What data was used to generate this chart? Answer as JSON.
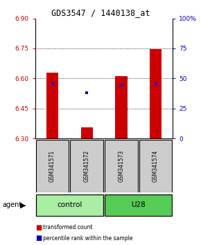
{
  "title": "GDS3547 / 1440138_at",
  "samples": [
    "GSM341571",
    "GSM341572",
    "GSM341573",
    "GSM341574"
  ],
  "groups": [
    "control",
    "control",
    "U28",
    "U28"
  ],
  "ylim": [
    6.3,
    6.9
  ],
  "y_ticks_left": [
    6.3,
    6.45,
    6.6,
    6.75,
    6.9
  ],
  "y_ticks_right": [
    0,
    25,
    50,
    75,
    100
  ],
  "bar_bottom": 6.3,
  "bar_tops": [
    6.63,
    6.355,
    6.61,
    6.745
  ],
  "blue_y": [
    6.572,
    6.527,
    6.565,
    6.572
  ],
  "bar_color": "#CC0000",
  "blue_color": "#0000CC",
  "bar_width": 0.35,
  "right_axis_color": "#0000CC",
  "left_axis_color": "#CC0000",
  "control_color": "#AAEEA4",
  "u28_color": "#55CC55",
  "legend_red": "transformed count",
  "legend_blue": "percentile rank within the sample"
}
